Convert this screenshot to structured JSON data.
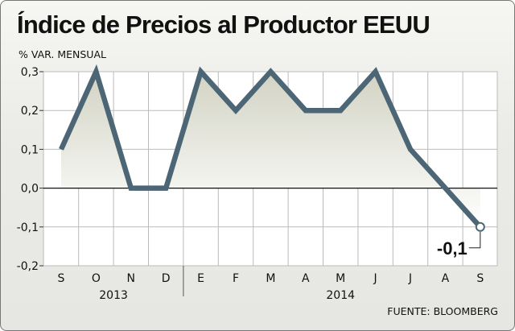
{
  "title": "Índice de Precios al Productor EEUU",
  "subtitle": "% VAR. MENSUAL",
  "source": "FUENTE: BLOOMBERG",
  "colors": {
    "line": "#4d6676",
    "fill_top": "#d2d3c3",
    "fill_bottom": "#ffffff",
    "plot_bg": "#ffffff",
    "grid": "#bbbbbb",
    "zero_line": "#111111"
  },
  "chart_data": {
    "type": "line",
    "categories": [
      "S",
      "O",
      "N",
      "D",
      "E",
      "F",
      "M",
      "A",
      "M",
      "J",
      "J",
      "A",
      "S"
    ],
    "year_labels": [
      "2013",
      "2014"
    ],
    "year_category_spans": [
      [
        0,
        3
      ],
      [
        4,
        12
      ]
    ],
    "values": [
      0.1,
      0.3,
      0.0,
      0.0,
      0.3,
      0.2,
      0.3,
      0.2,
      0.2,
      0.3,
      0.1,
      0.0,
      -0.1
    ],
    "y_ticks": [
      "0,3",
      "0,2",
      "0,1",
      "0,0",
      "-0,1",
      "-0,2"
    ],
    "y_tick_values": [
      0.3,
      0.2,
      0.1,
      0.0,
      -0.1,
      -0.2
    ],
    "ylim": [
      -0.2,
      0.3
    ],
    "grid": true,
    "annotation": {
      "text": "-0,1",
      "category_index": 12
    }
  }
}
